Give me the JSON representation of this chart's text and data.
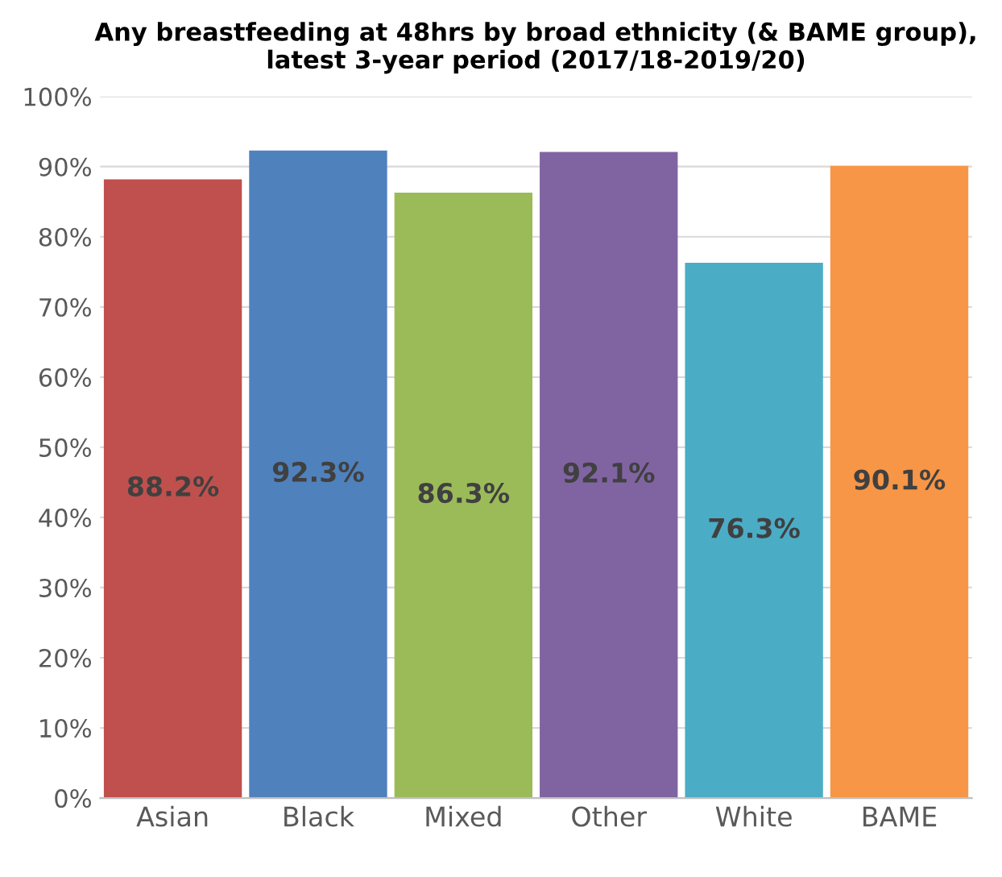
{
  "chart_data": {
    "type": "bar",
    "title": "Any breastfeeding at 48hrs by broad ethnicity (& BAME group), latest 3-year period (2017/18-2019/20)",
    "categories": [
      "Asian",
      "Black",
      "Mixed",
      "Other",
      "White",
      "BAME"
    ],
    "values": [
      88.2,
      92.3,
      86.3,
      92.1,
      76.3,
      90.1
    ],
    "value_labels": [
      "88.2%",
      "92.3%",
      "86.3%",
      "92.1%",
      "76.3%",
      "90.1%"
    ],
    "colors": [
      "#c0504d",
      "#4f81bd",
      "#9bbb59",
      "#8064a2",
      "#4bacc6",
      "#f79646"
    ],
    "ylim": [
      0,
      100
    ],
    "yticks": [
      {
        "value": 0,
        "label": "0%"
      },
      {
        "value": 10,
        "label": "10%"
      },
      {
        "value": 20,
        "label": "20%"
      },
      {
        "value": 30,
        "label": "30%"
      },
      {
        "value": 40,
        "label": "40%"
      },
      {
        "value": 50,
        "label": "50%"
      },
      {
        "value": 60,
        "label": "60%"
      },
      {
        "value": 70,
        "label": "70%"
      },
      {
        "value": 80,
        "label": "80%"
      },
      {
        "value": 90,
        "label": "90%"
      },
      {
        "value": 100,
        "label": "100%"
      }
    ],
    "grid": "y"
  }
}
